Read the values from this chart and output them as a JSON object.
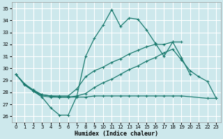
{
  "xlabel": "Humidex (Indice chaleur)",
  "bg_color": "#cde8ec",
  "grid_color": "#ffffff",
  "line_color": "#1a7a6e",
  "xlim": [
    -0.5,
    23.5
  ],
  "ylim": [
    25.5,
    35.5
  ],
  "xticks": [
    0,
    1,
    2,
    3,
    4,
    5,
    6,
    7,
    8,
    9,
    10,
    11,
    12,
    13,
    14,
    15,
    16,
    17,
    18,
    19,
    20,
    21,
    22,
    23
  ],
  "yticks": [
    26,
    27,
    28,
    29,
    30,
    31,
    32,
    33,
    34,
    35
  ],
  "curve1_x": [
    0,
    1,
    2,
    3,
    4,
    5,
    6,
    7,
    8,
    9,
    10,
    11,
    12,
    13,
    14,
    15,
    16,
    17,
    18,
    19,
    20
  ],
  "curve1_y": [
    29.5,
    28.7,
    28.1,
    27.6,
    26.7,
    26.1,
    26.1,
    27.7,
    31.0,
    32.5,
    33.6,
    34.9,
    33.5,
    34.2,
    34.1,
    33.2,
    32.1,
    31.0,
    32.2,
    30.9,
    29.5
  ],
  "curve2_x": [
    0,
    1,
    2,
    3,
    4,
    5,
    6,
    7,
    8,
    9,
    10,
    11,
    12,
    13,
    14,
    15,
    16,
    17,
    18,
    19
  ],
  "curve2_y": [
    29.5,
    28.7,
    28.2,
    27.8,
    27.7,
    27.7,
    27.7,
    28.3,
    29.3,
    29.8,
    30.1,
    30.5,
    30.8,
    31.2,
    31.5,
    31.8,
    32.0,
    32.0,
    32.2,
    32.2
  ],
  "curve3_x": [
    0,
    1,
    2,
    3,
    4,
    5,
    6,
    7,
    8,
    9,
    10,
    11,
    12,
    13,
    14,
    15,
    16,
    17,
    18,
    19,
    20,
    21,
    22,
    23
  ],
  "curve3_y": [
    29.5,
    28.6,
    28.1,
    27.8,
    27.7,
    27.6,
    27.6,
    27.7,
    27.9,
    28.4,
    28.8,
    29.1,
    29.5,
    29.9,
    30.2,
    30.6,
    30.9,
    31.3,
    31.6,
    30.7,
    29.8,
    29.3,
    28.9,
    27.5
  ],
  "curve4_x": [
    2,
    3,
    4,
    5,
    6,
    7,
    8,
    9,
    10,
    11,
    12,
    13,
    14,
    15,
    16,
    17,
    18,
    19,
    22,
    23
  ],
  "curve4_y": [
    28.1,
    27.7,
    27.6,
    27.6,
    27.6,
    27.6,
    27.6,
    27.7,
    27.7,
    27.7,
    27.7,
    27.7,
    27.7,
    27.7,
    27.7,
    27.7,
    27.7,
    27.7,
    27.5,
    27.5
  ]
}
